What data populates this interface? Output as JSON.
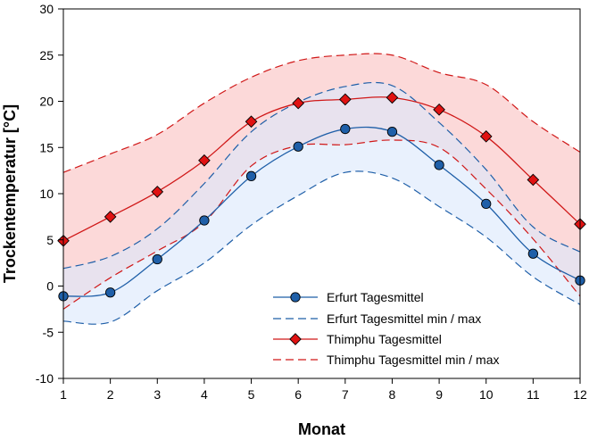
{
  "chart_data": {
    "type": "line",
    "xlabel": "Monat",
    "ylabel": "Trockentemperatur [°C]",
    "xlim": [
      1,
      12
    ],
    "ylim": [
      -10,
      30
    ],
    "x_ticks": [
      1,
      2,
      3,
      4,
      5,
      6,
      7,
      8,
      9,
      10,
      11,
      12
    ],
    "y_ticks": [
      -10,
      -5,
      0,
      5,
      10,
      15,
      20,
      25,
      30
    ],
    "grid": false,
    "legend_position": "bottom-right",
    "categories": [
      1,
      2,
      3,
      4,
      5,
      6,
      7,
      8,
      9,
      10,
      11,
      12
    ],
    "series": [
      {
        "name": "Erfurt Tagesmittel",
        "values": [
          -1.1,
          -0.7,
          2.9,
          7.1,
          11.9,
          15.1,
          17.0,
          16.7,
          13.1,
          8.9,
          3.5,
          0.6
        ],
        "color": "#1f5fa8",
        "marker": "circle",
        "marker_fill": "#1f5fa8"
      },
      {
        "name": "Erfurt Tagesmittel min / max",
        "min": [
          -3.8,
          -3.9,
          -0.5,
          2.5,
          6.6,
          9.8,
          12.3,
          11.7,
          8.6,
          5.3,
          1.0,
          -2.0
        ],
        "max": [
          1.9,
          3.2,
          6.2,
          11.1,
          16.7,
          19.9,
          21.6,
          21.7,
          17.7,
          12.6,
          6.4,
          3.7
        ],
        "color": "#1f5fa8",
        "fill": "#dbe8fb",
        "line_style": "dashed"
      },
      {
        "name": "Thimphu Tagesmittel",
        "values": [
          4.9,
          7.5,
          10.2,
          13.6,
          17.8,
          19.8,
          20.2,
          20.4,
          19.1,
          16.2,
          11.5,
          6.7
        ],
        "color": "#d01818",
        "marker": "diamond",
        "marker_fill": "#e01212"
      },
      {
        "name": "Thimphu Tagesmittel min / max",
        "min": [
          -2.5,
          0.9,
          3.8,
          6.9,
          13.0,
          15.2,
          15.3,
          15.8,
          15.0,
          10.5,
          5.1,
          -1.1
        ],
        "max": [
          12.3,
          14.3,
          16.4,
          19.8,
          22.6,
          24.4,
          25.0,
          25.0,
          23.1,
          21.8,
          17.8,
          14.5
        ],
        "color": "#d01818",
        "fill": "#fcd9d9",
        "line_style": "dashed"
      }
    ]
  }
}
